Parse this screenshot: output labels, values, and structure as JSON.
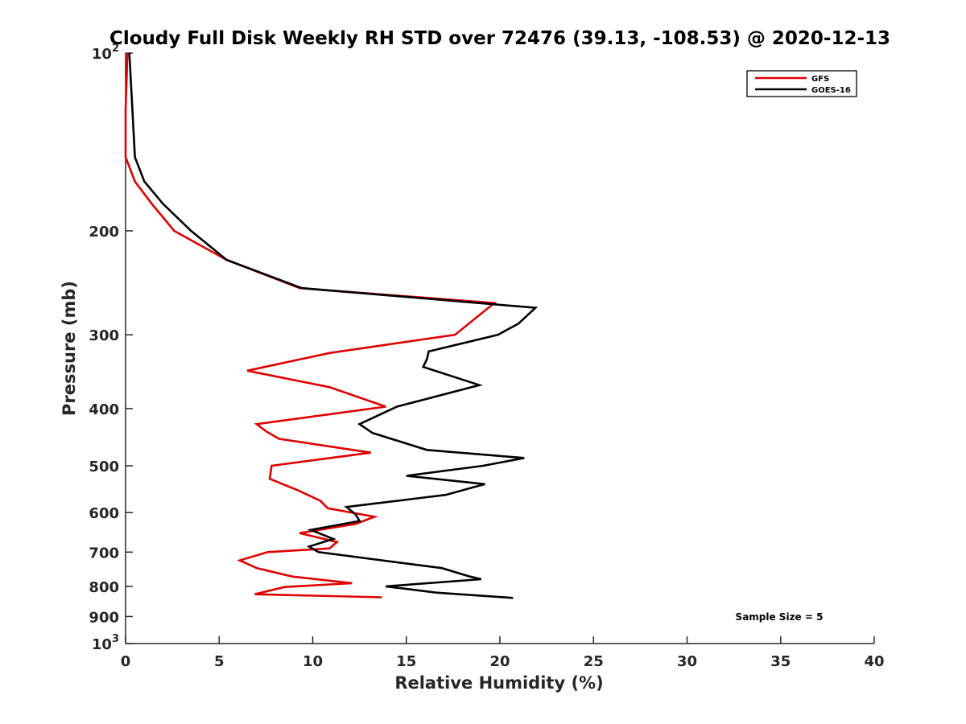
{
  "chart_data": {
    "type": "line",
    "title": "Cloudy Full Disk Weekly RH STD over 72476 (39.13, -108.53) @ 2020-12-13",
    "xlabel": "Relative Humidity (%)",
    "ylabel": "Pressure (mb)",
    "xlim": [
      0,
      40
    ],
    "ylim": [
      100,
      1000
    ],
    "yscale": "log",
    "y_reversed": true,
    "grid": false,
    "legend_position": "top-right",
    "xticks": [
      0,
      5,
      10,
      15,
      20,
      25,
      30,
      35,
      40
    ],
    "xtick_labels": [
      "0",
      "5",
      "10",
      "15",
      "20",
      "25",
      "30",
      "35",
      "40"
    ],
    "yticks": [
      100,
      200,
      300,
      400,
      500,
      600,
      700,
      800,
      900,
      1000
    ],
    "ytick_labels": [
      {
        "text": "10",
        "sup": "2"
      },
      {
        "text": "200",
        "sup": ""
      },
      {
        "text": "300",
        "sup": ""
      },
      {
        "text": "400",
        "sup": ""
      },
      {
        "text": "500",
        "sup": ""
      },
      {
        "text": "600",
        "sup": ""
      },
      {
        "text": "700",
        "sup": ""
      },
      {
        "text": "800",
        "sup": ""
      },
      {
        "text": "900",
        "sup": ""
      },
      {
        "text": "10",
        "sup": "3"
      }
    ],
    "annotation": "Sample Size = 5",
    "series": [
      {
        "name": "GFS",
        "color": "#e00000",
        "points": [
          [
            0.1,
            100
          ],
          [
            0.0,
            125
          ],
          [
            0.0,
            150
          ],
          [
            0.5,
            165
          ],
          [
            1.4,
            180
          ],
          [
            2.6,
            200
          ],
          [
            5.4,
            224
          ],
          [
            9.3,
            250
          ],
          [
            19.7,
            265
          ],
          [
            17.6,
            300
          ],
          [
            10.9,
            322
          ],
          [
            6.5,
            345
          ],
          [
            10.9,
            368
          ],
          [
            13.9,
            397
          ],
          [
            7.0,
            425
          ],
          [
            7.5,
            437
          ],
          [
            8.2,
            450
          ],
          [
            13.1,
            475
          ],
          [
            7.8,
            500
          ],
          [
            7.7,
            526
          ],
          [
            9.2,
            550
          ],
          [
            10.4,
            573
          ],
          [
            10.8,
            590
          ],
          [
            13.3,
            610
          ],
          [
            12.3,
            627
          ],
          [
            9.3,
            650
          ],
          [
            11.3,
            673
          ],
          [
            10.9,
            690
          ],
          [
            7.6,
            700
          ],
          [
            6.1,
            723
          ],
          [
            7.0,
            745
          ],
          [
            8.9,
            770
          ],
          [
            12.1,
            790
          ],
          [
            8.5,
            802
          ],
          [
            6.9,
            825
          ],
          [
            13.7,
            835
          ]
        ]
      },
      {
        "name": "GOES-16",
        "color": "#000000",
        "points": [
          [
            0.2,
            100
          ],
          [
            0.5,
            150
          ],
          [
            1.0,
            165
          ],
          [
            2.0,
            180
          ],
          [
            3.5,
            200
          ],
          [
            5.4,
            224
          ],
          [
            9.4,
            250
          ],
          [
            21.9,
            270
          ],
          [
            21.0,
            287
          ],
          [
            19.9,
            300
          ],
          [
            16.2,
            320
          ],
          [
            16.1,
            330
          ],
          [
            15.9,
            340
          ],
          [
            18.9,
            365
          ],
          [
            14.5,
            397
          ],
          [
            12.5,
            425
          ],
          [
            13.2,
            440
          ],
          [
            16.1,
            470
          ],
          [
            21.3,
            485
          ],
          [
            19.1,
            500
          ],
          [
            15.0,
            520
          ],
          [
            19.2,
            537
          ],
          [
            17.1,
            560
          ],
          [
            11.8,
            587
          ],
          [
            12.3,
            605
          ],
          [
            12.5,
            620
          ],
          [
            9.9,
            642
          ],
          [
            11.1,
            665
          ],
          [
            9.8,
            685
          ],
          [
            10.3,
            700
          ],
          [
            16.9,
            745
          ],
          [
            18.4,
            770
          ],
          [
            19.0,
            778
          ],
          [
            13.9,
            800
          ],
          [
            16.6,
            820
          ],
          [
            20.7,
            837
          ]
        ]
      }
    ]
  }
}
